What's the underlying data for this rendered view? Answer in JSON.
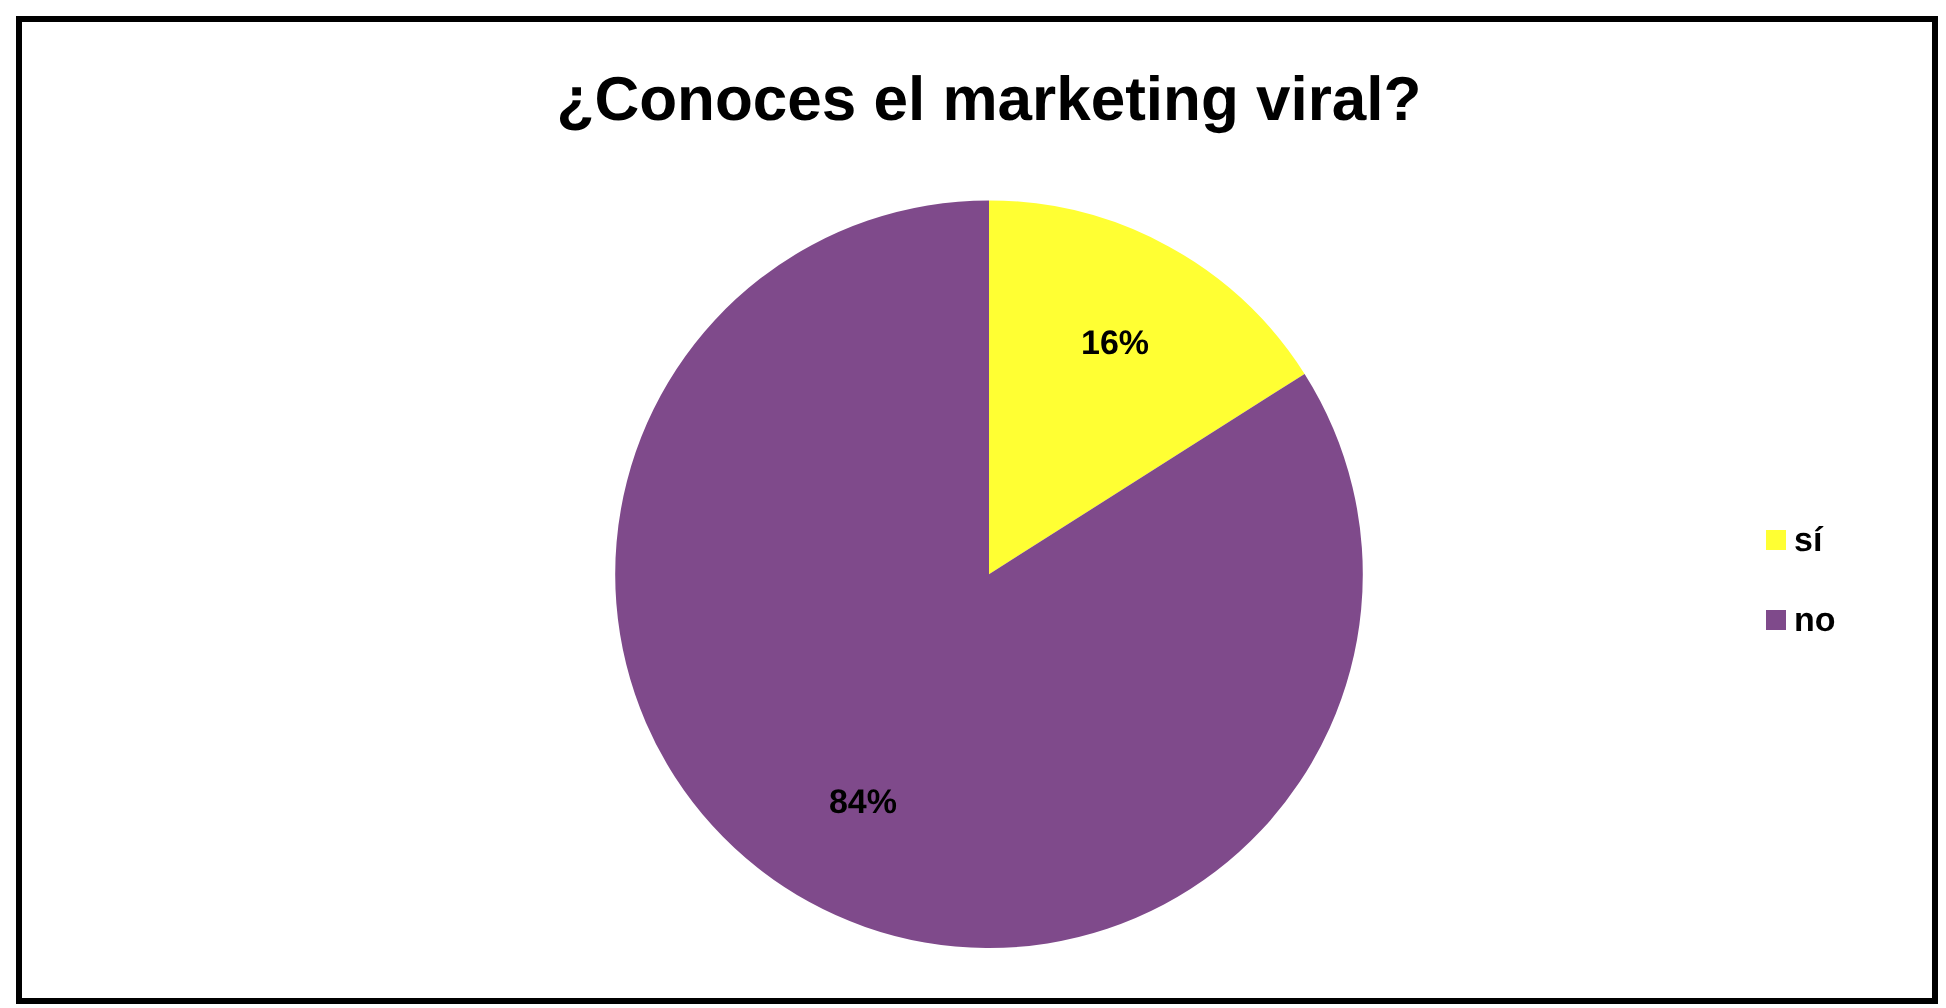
{
  "chart_data": {
    "type": "pie",
    "title": "¿Conoces el marketing viral?",
    "categories": [
      "sí",
      "no"
    ],
    "values": [
      16,
      84
    ],
    "colors": [
      "#ffff33",
      "#7f4a8b"
    ],
    "value_labels": [
      "16%",
      "84%"
    ],
    "legend": "right"
  }
}
